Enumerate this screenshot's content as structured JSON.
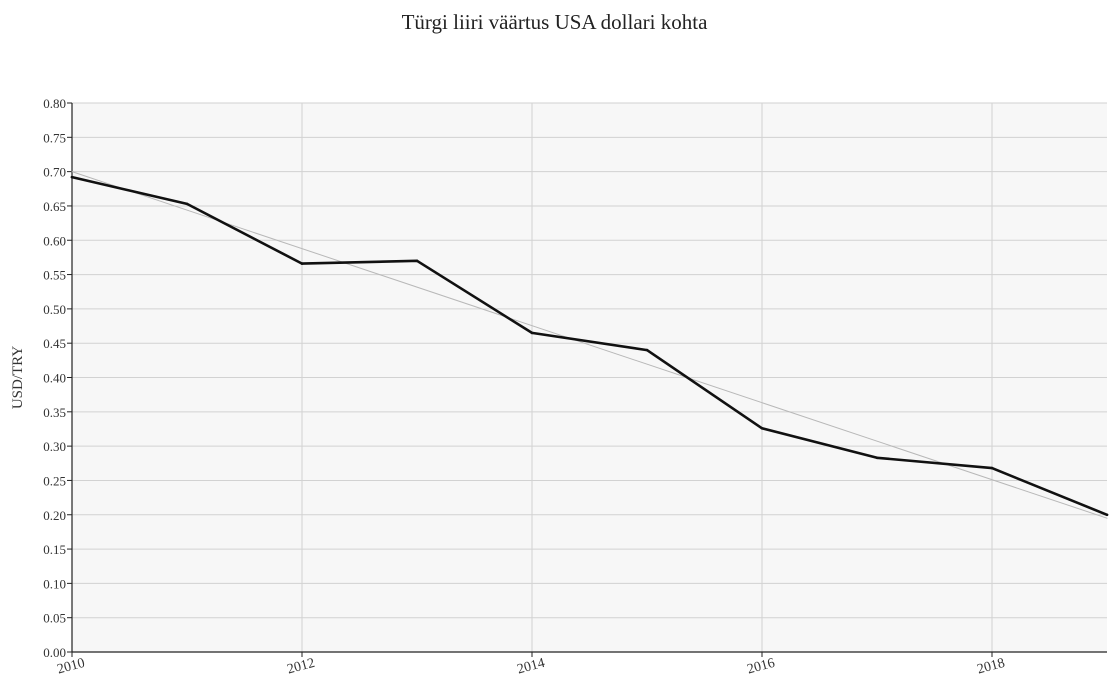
{
  "chart_data": {
    "type": "line",
    "title": "Türgi liiri väärtus USA dollari kohta",
    "xlabel": "",
    "ylabel": "USD/TRY",
    "xlim": [
      2010,
      2019
    ],
    "ylim": [
      0,
      0.8
    ],
    "x_ticks": [
      "2010",
      "2012",
      "2014",
      "2016",
      "2018"
    ],
    "y_ticks": [
      "0.00",
      "0.05",
      "0.10",
      "0.15",
      "0.20",
      "0.25",
      "0.30",
      "0.35",
      "0.40",
      "0.45",
      "0.50",
      "0.55",
      "0.60",
      "0.65",
      "0.70",
      "0.75",
      "0.80"
    ],
    "grid": true,
    "series": [
      {
        "kind": "data",
        "color": "#111111",
        "x": [
          2010,
          2011,
          2012,
          2013,
          2014,
          2015,
          2016,
          2017,
          2018,
          2019
        ],
        "values": [
          0.692,
          0.653,
          0.566,
          0.57,
          0.465,
          0.44,
          0.326,
          0.283,
          0.268,
          0.2
        ]
      },
      {
        "kind": "trend",
        "color": "#b8b8b8",
        "x": [
          2010,
          2019
        ],
        "values": [
          0.7,
          0.195
        ]
      }
    ]
  }
}
